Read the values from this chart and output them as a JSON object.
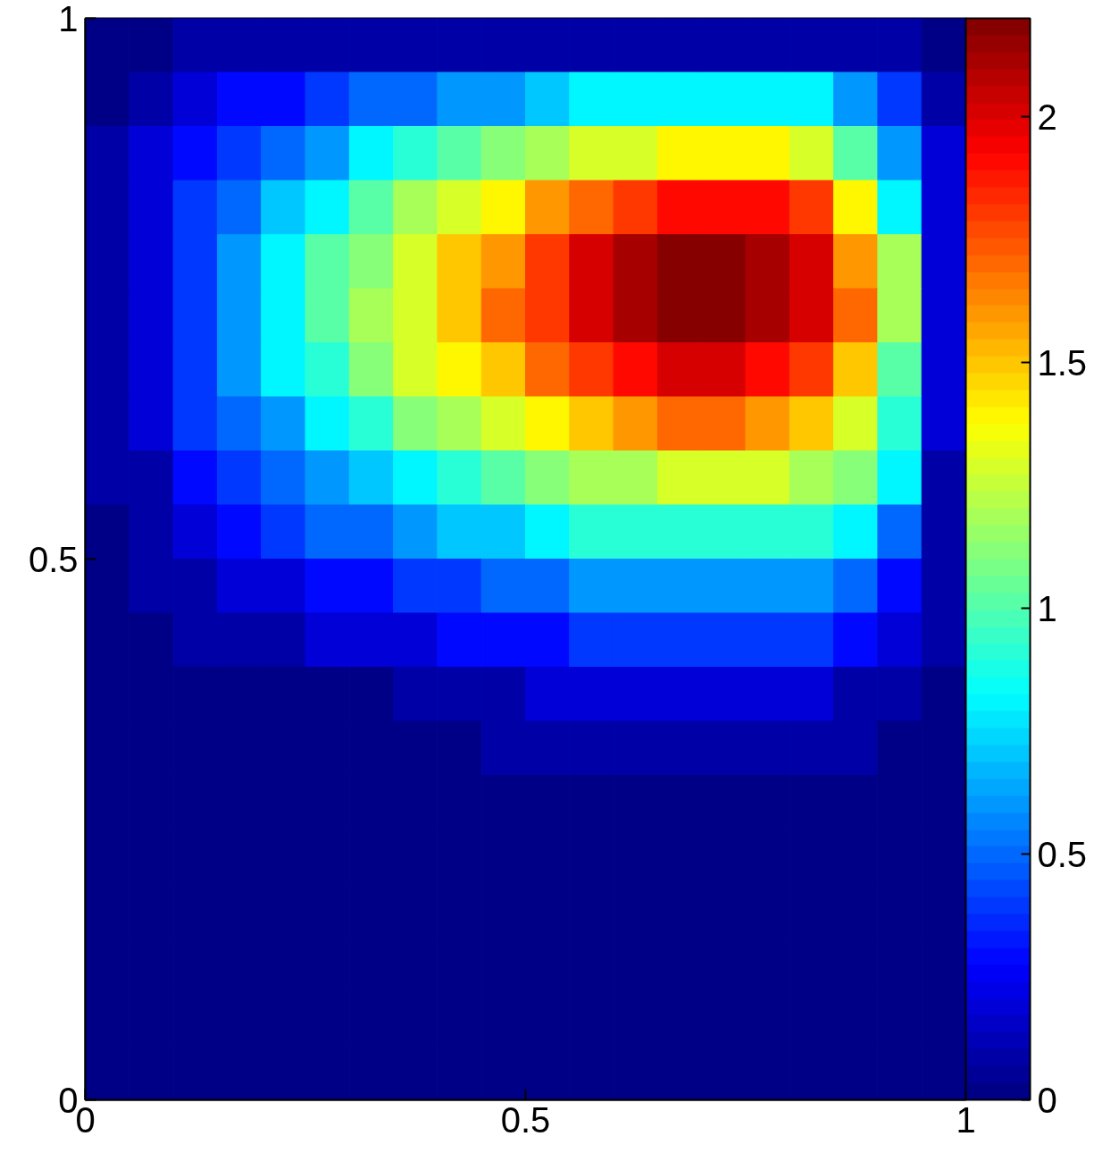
{
  "chart_data": {
    "type": "heatmap",
    "cells": [
      [
        0,
        0,
        0.1,
        0.1,
        0.1,
        0.1,
        0.1,
        0.1,
        0.1,
        0.1,
        0.1,
        0.1,
        0.1,
        0.1,
        0.1,
        0.1,
        0.1,
        0.1,
        0.1,
        0
      ],
      [
        0,
        0.1,
        0.2,
        0.3,
        0.3,
        0.4,
        0.5,
        0.5,
        0.6,
        0.6,
        0.7,
        0.8,
        0.8,
        0.8,
        0.8,
        0.8,
        0.8,
        0.6,
        0.4,
        0.1
      ],
      [
        0.1,
        0.2,
        0.3,
        0.4,
        0.5,
        0.6,
        0.8,
        0.9,
        1.0,
        1.1,
        1.2,
        1.3,
        1.3,
        1.4,
        1.4,
        1.4,
        1.3,
        1.0,
        0.6,
        0.2
      ],
      [
        0.1,
        0.2,
        0.4,
        0.5,
        0.7,
        0.8,
        1.0,
        1.2,
        1.3,
        1.4,
        1.6,
        1.7,
        1.8,
        1.9,
        1.9,
        1.9,
        1.8,
        1.4,
        0.8,
        0.2
      ],
      [
        0.1,
        0.2,
        0.4,
        0.6,
        0.8,
        1.0,
        1.1,
        1.3,
        1.5,
        1.6,
        1.8,
        2.0,
        2.1,
        2.2,
        2.2,
        2.1,
        2.0,
        1.6,
        1.2,
        0.2
      ],
      [
        0.1,
        0.2,
        0.4,
        0.6,
        0.8,
        1.0,
        1.2,
        1.3,
        1.5,
        1.7,
        1.8,
        2.0,
        2.1,
        2.2,
        2.2,
        2.1,
        2.0,
        1.7,
        1.2,
        0.2
      ],
      [
        0.1,
        0.2,
        0.4,
        0.6,
        0.8,
        0.9,
        1.1,
        1.3,
        1.4,
        1.5,
        1.7,
        1.8,
        1.9,
        2.0,
        2.0,
        1.9,
        1.8,
        1.5,
        1.0,
        0.2
      ],
      [
        0.1,
        0.2,
        0.4,
        0.5,
        0.6,
        0.8,
        0.9,
        1.1,
        1.2,
        1.3,
        1.4,
        1.5,
        1.6,
        1.7,
        1.7,
        1.6,
        1.5,
        1.3,
        0.9,
        0.2
      ],
      [
        0.1,
        0.1,
        0.3,
        0.4,
        0.5,
        0.6,
        0.7,
        0.8,
        0.9,
        1.0,
        1.1,
        1.2,
        1.2,
        1.3,
        1.3,
        1.3,
        1.2,
        1.1,
        0.8,
        0.1
      ],
      [
        0,
        0.1,
        0.2,
        0.3,
        0.4,
        0.5,
        0.5,
        0.6,
        0.7,
        0.7,
        0.8,
        0.9,
        0.9,
        0.9,
        0.9,
        0.9,
        0.9,
        0.8,
        0.5,
        0.1
      ],
      [
        0,
        0.1,
        0.1,
        0.2,
        0.2,
        0.3,
        0.3,
        0.4,
        0.4,
        0.5,
        0.5,
        0.6,
        0.6,
        0.6,
        0.6,
        0.6,
        0.6,
        0.5,
        0.3,
        0.1
      ],
      [
        0,
        0,
        0.1,
        0.1,
        0.1,
        0.2,
        0.2,
        0.2,
        0.3,
        0.3,
        0.3,
        0.4,
        0.4,
        0.4,
        0.4,
        0.4,
        0.4,
        0.3,
        0.2,
        0.1
      ],
      [
        0,
        0,
        0,
        0,
        0,
        0,
        0,
        0.1,
        0.1,
        0.1,
        0.2,
        0.2,
        0.2,
        0.2,
        0.2,
        0.2,
        0.2,
        0.1,
        0.1,
        0
      ],
      [
        0,
        0,
        0,
        0,
        0,
        0,
        0,
        0,
        0,
        0.1,
        0.1,
        0.1,
        0.1,
        0.1,
        0.1,
        0.1,
        0.1,
        0.1,
        0,
        0
      ],
      [
        0,
        0,
        0,
        0,
        0,
        0,
        0,
        0,
        0,
        0,
        0,
        0,
        0,
        0,
        0,
        0,
        0,
        0,
        0,
        0
      ],
      [
        0,
        0,
        0,
        0,
        0,
        0,
        0,
        0,
        0,
        0,
        0,
        0,
        0,
        0,
        0,
        0,
        0,
        0,
        0,
        0
      ],
      [
        0,
        0,
        0,
        0,
        0,
        0,
        0,
        0,
        0,
        0,
        0,
        0,
        0,
        0,
        0,
        0,
        0,
        0,
        0,
        0
      ],
      [
        0,
        0,
        0,
        0,
        0,
        0,
        0,
        0,
        0,
        0,
        0,
        0,
        0,
        0,
        0,
        0,
        0,
        0,
        0,
        0
      ],
      [
        0,
        0,
        0,
        0,
        0,
        0,
        0,
        0,
        0,
        0,
        0,
        0,
        0,
        0,
        0,
        0,
        0,
        0,
        0,
        0
      ],
      [
        0,
        0,
        0,
        0,
        0,
        0,
        0,
        0,
        0,
        0,
        0,
        0,
        0,
        0,
        0,
        0,
        0,
        0,
        0,
        0
      ]
    ],
    "xlim": [
      0,
      1
    ],
    "ylim": [
      0,
      1
    ],
    "xticks": [
      0,
      0.5,
      1
    ],
    "yticks": [
      0,
      0.5,
      1
    ],
    "clim": [
      0,
      2.2
    ],
    "cticks": [
      0,
      0.5,
      1,
      1.5,
      2
    ]
  }
}
